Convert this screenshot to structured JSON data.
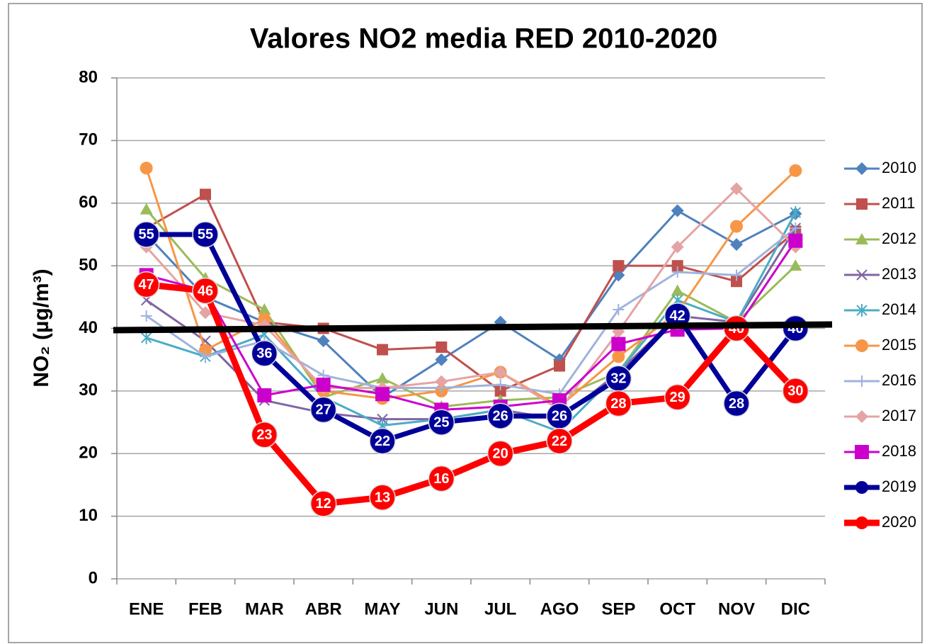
{
  "chart_data": {
    "type": "line",
    "title": "Valores NO2 media RED 2010-2020",
    "y_label": "NO₂ (µg/m³)",
    "categories": [
      "ENE",
      "FEB",
      "MAR",
      "ABR",
      "MAY",
      "JUN",
      "JUL",
      "AGO",
      "SEP",
      "OCT",
      "NOV",
      "DIC"
    ],
    "ylim": [
      0,
      80
    ],
    "yticks": [
      0,
      10,
      20,
      30,
      40,
      50,
      60,
      70,
      80
    ],
    "grid": true,
    "legend": "right",
    "series": [
      {
        "name": "2010",
        "color": "#4f81bd",
        "marker": "diamond",
        "values": [
          55,
          45,
          41,
          38,
          29,
          35,
          41,
          35,
          48.5,
          58.8,
          53.4,
          58.3
        ]
      },
      {
        "name": "2011",
        "color": "#c0504d",
        "marker": "square",
        "values": [
          56,
          61.4,
          41,
          40,
          36.6,
          37,
          30,
          34,
          50,
          50,
          47.5,
          55.5
        ]
      },
      {
        "name": "2012",
        "color": "#9bbb59",
        "marker": "triangle",
        "values": [
          59,
          48,
          43,
          29,
          32,
          27.5,
          28.5,
          29,
          33,
          46,
          41,
          50
        ]
      },
      {
        "name": "2013",
        "color": "#8064a2",
        "marker": "x",
        "values": [
          44.5,
          38,
          28.5,
          26.5,
          25.5,
          25.5,
          27,
          25.5,
          33,
          42,
          41,
          56
        ]
      },
      {
        "name": "2014",
        "color": "#4bacc6",
        "marker": "star",
        "values": [
          38.5,
          35.5,
          39,
          29,
          24.5,
          25.5,
          27,
          23.5,
          33,
          44.5,
          41,
          58.5
        ]
      },
      {
        "name": "2015",
        "color": "#f79646",
        "marker": "circle",
        "values": [
          65.6,
          36.5,
          41.5,
          30,
          28.8,
          30,
          33,
          27.5,
          35.5,
          42.5,
          56.3,
          65.2
        ]
      },
      {
        "name": "2016",
        "color": "#9fb3dc",
        "marker": "plus",
        "values": [
          42,
          35.5,
          38,
          32.5,
          30.5,
          30.5,
          31,
          29.5,
          43,
          49,
          48.5,
          56
        ]
      },
      {
        "name": "2017",
        "color": "#e6a3a3",
        "marker": "diamond",
        "values": [
          53,
          42.5,
          40.5,
          30.5,
          30.5,
          31.5,
          33,
          27,
          39.5,
          53,
          62.3,
          53
        ]
      },
      {
        "name": "2018",
        "color": "#cc00cc",
        "marker": "bigsquare",
        "values": [
          48.5,
          46,
          29.3,
          31,
          29.5,
          27,
          27.5,
          28.5,
          37.5,
          39.8,
          40,
          54
        ]
      },
      {
        "name": "2019",
        "color": "#000099",
        "marker": "label",
        "line_width": 7,
        "values": [
          55,
          55,
          36,
          27,
          22,
          25,
          26,
          26,
          32,
          42,
          28,
          40
        ]
      },
      {
        "name": "2020",
        "color": "#ff0000",
        "marker": "label",
        "line_width": 9,
        "values": [
          47,
          46,
          23,
          12,
          13,
          16,
          20,
          22,
          28,
          29,
          40,
          30
        ]
      }
    ]
  }
}
